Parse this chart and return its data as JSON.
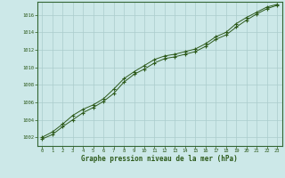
{
  "x": [
    0,
    1,
    2,
    3,
    4,
    5,
    6,
    7,
    8,
    9,
    10,
    11,
    12,
    13,
    14,
    15,
    16,
    17,
    18,
    19,
    20,
    21,
    22,
    23
  ],
  "y_line1": [
    1001.8,
    1002.3,
    1003.2,
    1004.0,
    1004.8,
    1005.4,
    1006.1,
    1007.0,
    1008.3,
    1009.2,
    1009.8,
    1010.5,
    1011.0,
    1011.2,
    1011.5,
    1011.8,
    1012.4,
    1013.2,
    1013.7,
    1014.6,
    1015.4,
    1016.1,
    1016.7,
    1017.1
  ],
  "y_line2": [
    1002.0,
    1002.6,
    1003.5,
    1004.5,
    1005.2,
    1005.7,
    1006.4,
    1007.5,
    1008.7,
    1009.5,
    1010.2,
    1010.9,
    1011.3,
    1011.5,
    1011.8,
    1012.1,
    1012.7,
    1013.5,
    1014.0,
    1015.0,
    1015.7,
    1016.3,
    1016.9,
    1017.2
  ],
  "bg_color": "#cce8e8",
  "line_color": "#2d5a1b",
  "grid_color": "#aacccc",
  "border_color": "#336633",
  "xlabel": "Graphe pression niveau de la mer (hPa)",
  "xlabel_color": "#2d5a1b",
  "tick_color": "#2d5a1b",
  "ylim": [
    1001.0,
    1017.5
  ],
  "xlim": [
    -0.5,
    23.5
  ],
  "yticks": [
    1002,
    1004,
    1006,
    1008,
    1010,
    1012,
    1014,
    1016
  ],
  "xticks": [
    0,
    1,
    2,
    3,
    4,
    5,
    6,
    7,
    8,
    9,
    10,
    11,
    12,
    13,
    14,
    15,
    16,
    17,
    18,
    19,
    20,
    21,
    22,
    23
  ]
}
